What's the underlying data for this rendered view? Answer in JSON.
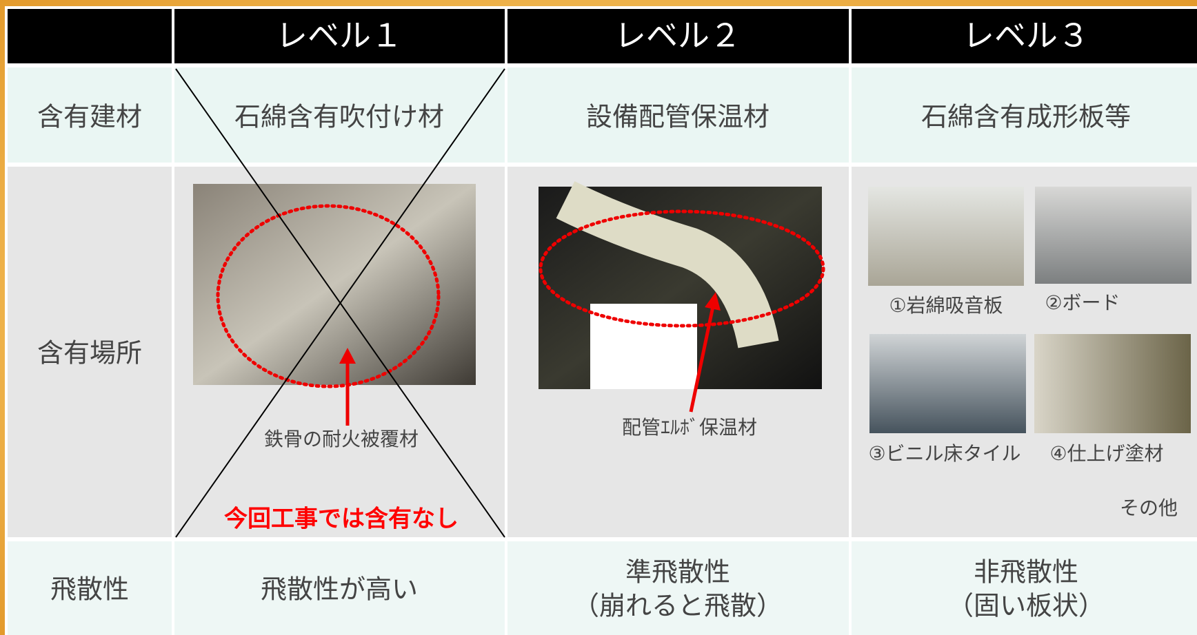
{
  "header": {
    "columns": [
      "レベル１",
      "レベル２",
      "レベル３"
    ]
  },
  "rows": [
    {
      "label": "含有建材",
      "cells": [
        "石綿含有吹付け材",
        "設備配管保温材",
        "石綿含有成形板等"
      ]
    },
    {
      "label": "含有場所",
      "level1": {
        "caption": "鉄骨の耐火被覆材",
        "note": "今回工事では含有なし"
      },
      "level2": {
        "caption": "配管ｴﾙﾎﾞ保温材"
      },
      "level3": {
        "items": [
          "①岩綿吸音板",
          "②ボード",
          "③ビニル床タイル",
          "④仕上げ塗材"
        ],
        "other": "その他"
      }
    },
    {
      "label": "飛散性",
      "cells": [
        [
          "飛散性が高い"
        ],
        [
          "準飛散性",
          "（崩れると飛散）"
        ],
        [
          "非飛散性",
          "（固い板状）"
        ]
      ]
    }
  ]
}
